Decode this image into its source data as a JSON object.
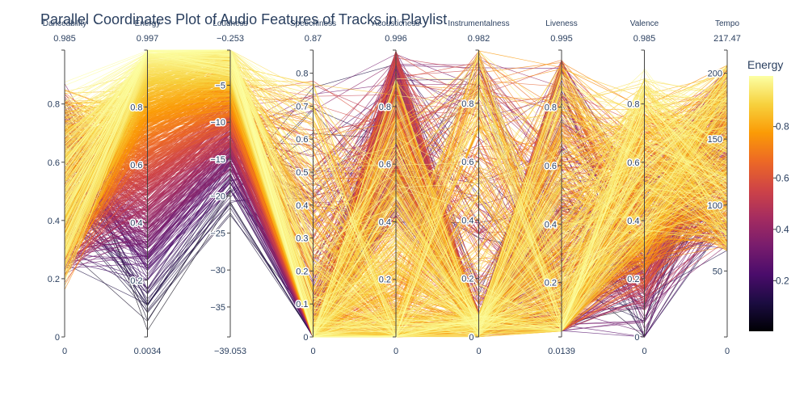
{
  "chart_data": {
    "type": "parallel_coordinates",
    "title": "Parallel Coordinates Plot of Audio Features of Tracks in Playlist",
    "color_by": "Energy",
    "colorscale": "inferno",
    "colorscale_stops": [
      "#000004",
      "#1b0c41",
      "#4a0c6b",
      "#781c6d",
      "#a52c60",
      "#cf4446",
      "#ed6925",
      "#fb9b06",
      "#f7d13d",
      "#fcffa4"
    ],
    "colorbar": {
      "title": "Energy",
      "range": [
        0.0034,
        0.997
      ],
      "ticks": [
        0.2,
        0.4,
        0.6,
        0.8
      ]
    },
    "dimensions": [
      {
        "label": "Danceability",
        "range": [
          0,
          0.985
        ],
        "max_label": "0.985",
        "min_label": "0",
        "ticks": [
          0,
          0.2,
          0.4,
          0.6,
          0.8
        ],
        "tick_side": "left"
      },
      {
        "label": "Energy",
        "range": [
          0.0034,
          0.997
        ],
        "max_label": "0.997",
        "min_label": "0.0034",
        "ticks": [
          0.2,
          0.4,
          0.6,
          0.8
        ],
        "tick_side": "left"
      },
      {
        "label": "Loudness",
        "range": [
          -39.053,
          -0.253
        ],
        "max_label": "−0.253",
        "min_label": "−39.053",
        "ticks": [
          -35,
          -30,
          -25,
          -20,
          -15,
          -10,
          -5
        ],
        "tick_side": "left"
      },
      {
        "label": "Speechiness",
        "range": [
          0,
          0.87
        ],
        "max_label": "0.87",
        "min_label": "0",
        "ticks": [
          0,
          0.1,
          0.2,
          0.3,
          0.4,
          0.5,
          0.6,
          0.7,
          0.8
        ],
        "tick_side": "left"
      },
      {
        "label": "Acousticness",
        "range": [
          0,
          0.996
        ],
        "max_label": "0.996",
        "min_label": "0",
        "ticks": [
          0.2,
          0.4,
          0.6,
          0.8
        ],
        "tick_side": "left"
      },
      {
        "label": "Instrumentalness",
        "range": [
          0,
          0.982
        ],
        "max_label": "0.982",
        "min_label": "0",
        "ticks": [
          0,
          0.2,
          0.4,
          0.6,
          0.8
        ],
        "tick_side": "left"
      },
      {
        "label": "Liveness",
        "range": [
          0.0139,
          0.995
        ],
        "max_label": "0.995",
        "min_label": "0.0139",
        "ticks": [
          0.2,
          0.4,
          0.6,
          0.8
        ],
        "tick_side": "left"
      },
      {
        "label": "Valence",
        "range": [
          0,
          0.985
        ],
        "max_label": "0.985",
        "min_label": "0",
        "ticks": [
          0,
          0.2,
          0.4,
          0.6,
          0.8
        ],
        "tick_side": "left"
      },
      {
        "label": "Tempo",
        "range": [
          0,
          217.47
        ],
        "max_label": "217.47",
        "min_label": "0",
        "ticks": [
          50,
          100,
          150,
          200
        ],
        "tick_side": "left"
      }
    ],
    "line_count": 900
  }
}
